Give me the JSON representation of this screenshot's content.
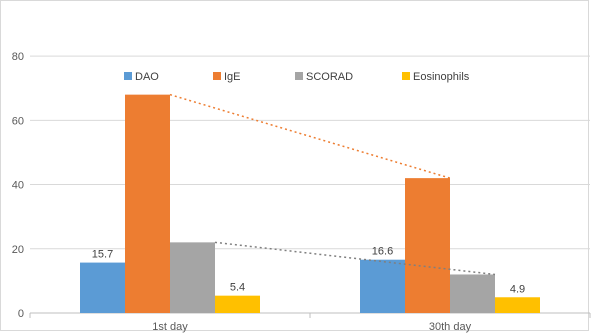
{
  "chart_data": {
    "type": "bar",
    "categories": [
      "1st day",
      "30th day"
    ],
    "series": [
      {
        "name": "DAO",
        "values": [
          15.7,
          16.6
        ],
        "color": "#5B9BD5",
        "labels": [
          "15.7",
          "16.6"
        ]
      },
      {
        "name": "IgE",
        "values": [
          68,
          42
        ],
        "color": "#ED7D31",
        "labels": [
          "",
          ""
        ]
      },
      {
        "name": "SCORAD",
        "values": [
          22,
          12
        ],
        "color": "#A5A5A5",
        "labels": [
          "",
          ""
        ]
      },
      {
        "name": "Eosinophils",
        "values": [
          5.4,
          4.9
        ],
        "color": "#FFC000",
        "labels": [
          "5.4",
          "4.9"
        ]
      }
    ],
    "y_ticks": [
      "0",
      "20",
      "40",
      "60",
      "80"
    ],
    "ylim": [
      0,
      90
    ],
    "legend_position": "top",
    "grid": "horizontal",
    "trend_lines": [
      {
        "series": "IgE",
        "color": "#ED7D31",
        "style": "dotted"
      },
      {
        "series": "SCORAD",
        "color": "#7F7F7F",
        "style": "dotted"
      }
    ]
  }
}
